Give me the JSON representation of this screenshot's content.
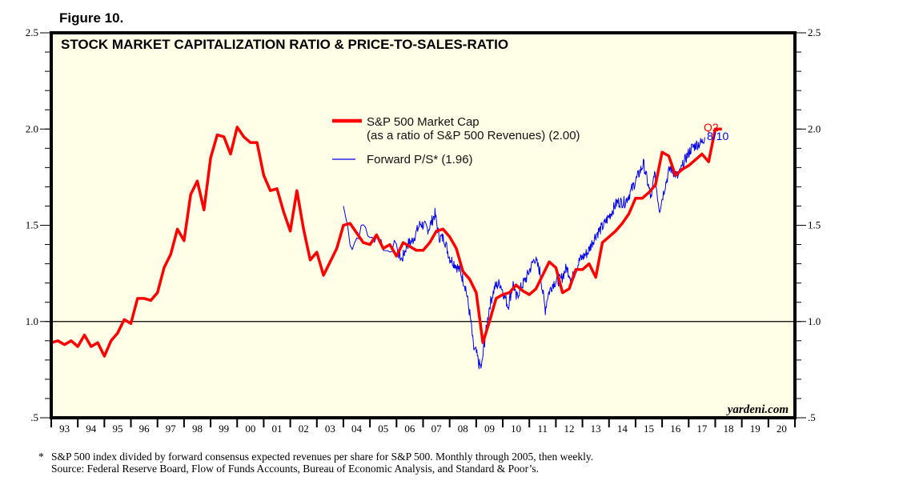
{
  "figure_label": "Figure 10.",
  "footnotes": {
    "marker": "*",
    "line1": "S&P 500 index divided by forward consensus expected revenues per share for S&P 500. Monthly through 2005, then weekly.",
    "line2": "Source: Federal Reserve Board, Flow of Funds Accounts, Bureau of Economic Analysis, and Standard & Poor’s."
  },
  "colors": {
    "plot_background": "#fffee6",
    "market_cap": "#ff0000",
    "forward_ps": "#0000ee",
    "reference_line": "#000000"
  },
  "chart_data": {
    "type": "line",
    "title": "STOCK MARKET CAPITALIZATION RATIO & PRICE-TO-SALES-RATIO",
    "xlabel": "",
    "ylabel": "",
    "xlim": [
      1993,
      2021
    ],
    "ylim": [
      0.5,
      2.5
    ],
    "grid": false,
    "reference_line": 1.0,
    "legend_placement": "top-center",
    "watermark": "yardeni.com",
    "x_tick_labels": [
      "93",
      "94",
      "95",
      "96",
      "97",
      "98",
      "99",
      "00",
      "01",
      "02",
      "03",
      "04",
      "05",
      "06",
      "07",
      "08",
      "09",
      "10",
      "11",
      "12",
      "13",
      "14",
      "15",
      "16",
      "17",
      "18",
      "19",
      "20"
    ],
    "y_ticks_major": [
      {
        "value": 2.5,
        "label": "2.5"
      },
      {
        "value": 2.0,
        "label": "2.0"
      },
      {
        "value": 1.5,
        "label": "1.5"
      },
      {
        "value": 1.0,
        "label": "1.0"
      },
      {
        "value": 0.5,
        "label": ".5"
      }
    ],
    "y_minor_step": 0.1,
    "series": [
      {
        "name": "S&P 500 Market Cap",
        "legend_line1": "S&P 500 Market Cap",
        "legend_line2": "(as a ratio of S&P 500 Revenues) (2.00)",
        "frequency": "quarterly",
        "start": 1993.0,
        "step": 0.25,
        "end_label": "Q2",
        "values": [
          0.89,
          0.9,
          0.88,
          0.9,
          0.87,
          0.93,
          0.87,
          0.89,
          0.82,
          0.9,
          0.94,
          1.01,
          0.99,
          1.12,
          1.12,
          1.11,
          1.15,
          1.28,
          1.35,
          1.48,
          1.42,
          1.66,
          1.73,
          1.58,
          1.85,
          1.97,
          1.96,
          1.87,
          2.01,
          1.96,
          1.93,
          1.93,
          1.76,
          1.68,
          1.69,
          1.57,
          1.47,
          1.68,
          1.48,
          1.32,
          1.36,
          1.24,
          1.31,
          1.38,
          1.5,
          1.51,
          1.46,
          1.41,
          1.4,
          1.45,
          1.38,
          1.4,
          1.34,
          1.41,
          1.39,
          1.37,
          1.37,
          1.41,
          1.47,
          1.48,
          1.44,
          1.38,
          1.26,
          1.22,
          1.15,
          0.89,
          1.0,
          1.12,
          1.14,
          1.15,
          1.19,
          1.16,
          1.14,
          1.17,
          1.24,
          1.31,
          1.28,
          1.15,
          1.17,
          1.27,
          1.27,
          1.3,
          1.23,
          1.41,
          1.44,
          1.47,
          1.51,
          1.56,
          1.64,
          1.64,
          1.67,
          1.71,
          1.88,
          1.86,
          1.76,
          1.79,
          1.81,
          1.84,
          1.87,
          1.83,
          2.0,
          2.0
        ]
      },
      {
        "name": "Forward P/S*",
        "legend_line1": "Forward P/S* (1.96)",
        "frequency": "monthly through 2005, then weekly",
        "end_label": "8/10",
        "anchors_x": [
          2004.0,
          2004.15,
          2004.3,
          2004.6,
          2004.8,
          2005.0,
          2005.3,
          2005.6,
          2005.9,
          2006.2,
          2006.4,
          2006.6,
          2006.9,
          2007.2,
          2007.45,
          2007.6,
          2007.8,
          2008.0,
          2008.2,
          2008.4,
          2008.6,
          2008.8,
          2008.9,
          2009.0,
          2009.1,
          2009.2,
          2009.3,
          2009.5,
          2009.7,
          2009.9,
          2010.2,
          2010.4,
          2010.5,
          2010.7,
          2010.9,
          2011.2,
          2011.4,
          2011.6,
          2011.7,
          2011.9,
          2012.2,
          2012.4,
          2012.6,
          2012.9,
          2013.2,
          2013.5,
          2013.8,
          2014.1,
          2014.3,
          2014.6,
          2014.8,
          2015.0,
          2015.3,
          2015.6,
          2015.7,
          2015.9,
          2016.1,
          2016.3,
          2016.6,
          2016.9,
          2017.1,
          2017.3,
          2017.5,
          2017.61
        ],
        "anchors_y": [
          1.6,
          1.5,
          1.38,
          1.46,
          1.51,
          1.42,
          1.45,
          1.36,
          1.4,
          1.32,
          1.4,
          1.42,
          1.51,
          1.48,
          1.56,
          1.44,
          1.43,
          1.33,
          1.3,
          1.26,
          1.18,
          1.0,
          0.86,
          0.84,
          0.78,
          0.76,
          0.88,
          1.08,
          1.18,
          1.2,
          1.08,
          1.2,
          1.12,
          1.18,
          1.23,
          1.33,
          1.26,
          1.06,
          1.14,
          1.2,
          1.22,
          1.28,
          1.22,
          1.32,
          1.36,
          1.45,
          1.5,
          1.57,
          1.62,
          1.62,
          1.67,
          1.73,
          1.82,
          1.63,
          1.78,
          1.58,
          1.7,
          1.8,
          1.75,
          1.85,
          1.9,
          1.92,
          1.93,
          1.96
        ]
      }
    ]
  }
}
